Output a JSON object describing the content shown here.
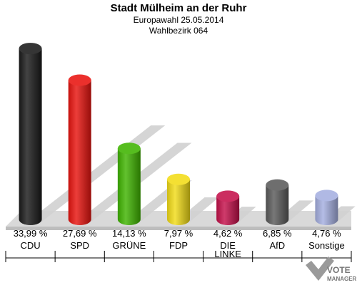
{
  "chart_data": {
    "type": "bar",
    "title": "Stadt Mülheim an der Ruhr",
    "subtitle_1": "Europawahl 25.05.2014",
    "subtitle_2": "Wahlbezirk 064",
    "categories": [
      "CDU",
      "SPD",
      "GRÜNE",
      "FDP",
      "DIE LINKE",
      "AfD",
      "Sonstige"
    ],
    "values": [
      33.99,
      27.69,
      14.13,
      7.97,
      4.62,
      6.85,
      4.76
    ],
    "value_labels": [
      "33,99 %",
      "27,69 %",
      "14,13 %",
      "7,97 %",
      "4,62 %",
      "6,85 %",
      "4,76 %"
    ],
    "colors": [
      "#1a1a1a",
      "#e8140f",
      "#3fb400",
      "#f2dc17",
      "#c4104a",
      "#5a5a5a",
      "#a5afe0"
    ],
    "ylim": [
      0,
      34
    ]
  },
  "logo": {
    "line1": "VOTE",
    "line2": "MANAGER"
  }
}
